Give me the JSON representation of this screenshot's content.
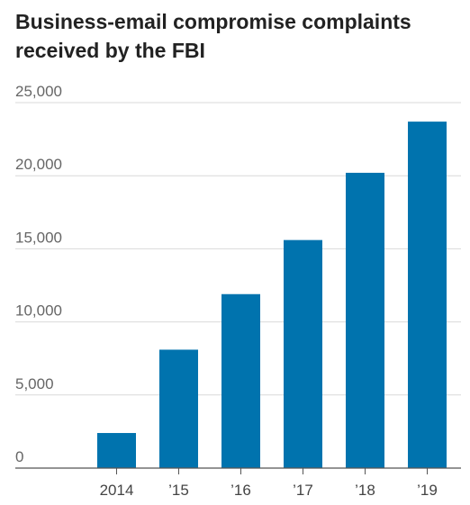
{
  "chart_data": {
    "type": "bar",
    "title": "Business-email compromise complaints received by the FBI",
    "categories": [
      "2014",
      "’15",
      "’16",
      "’17",
      "’18",
      "’19"
    ],
    "values": [
      2400,
      8100,
      11900,
      15600,
      20200,
      23700
    ],
    "ylim": [
      0,
      25000
    ],
    "yticks": [
      0,
      5000,
      10000,
      15000,
      20000,
      25000
    ],
    "ytick_labels": [
      "0",
      "5,000",
      "10,000",
      "15,000",
      "20,000",
      "25,000"
    ],
    "grid": true,
    "bar_color": "#0073ae",
    "xlabel": "",
    "ylabel": ""
  }
}
